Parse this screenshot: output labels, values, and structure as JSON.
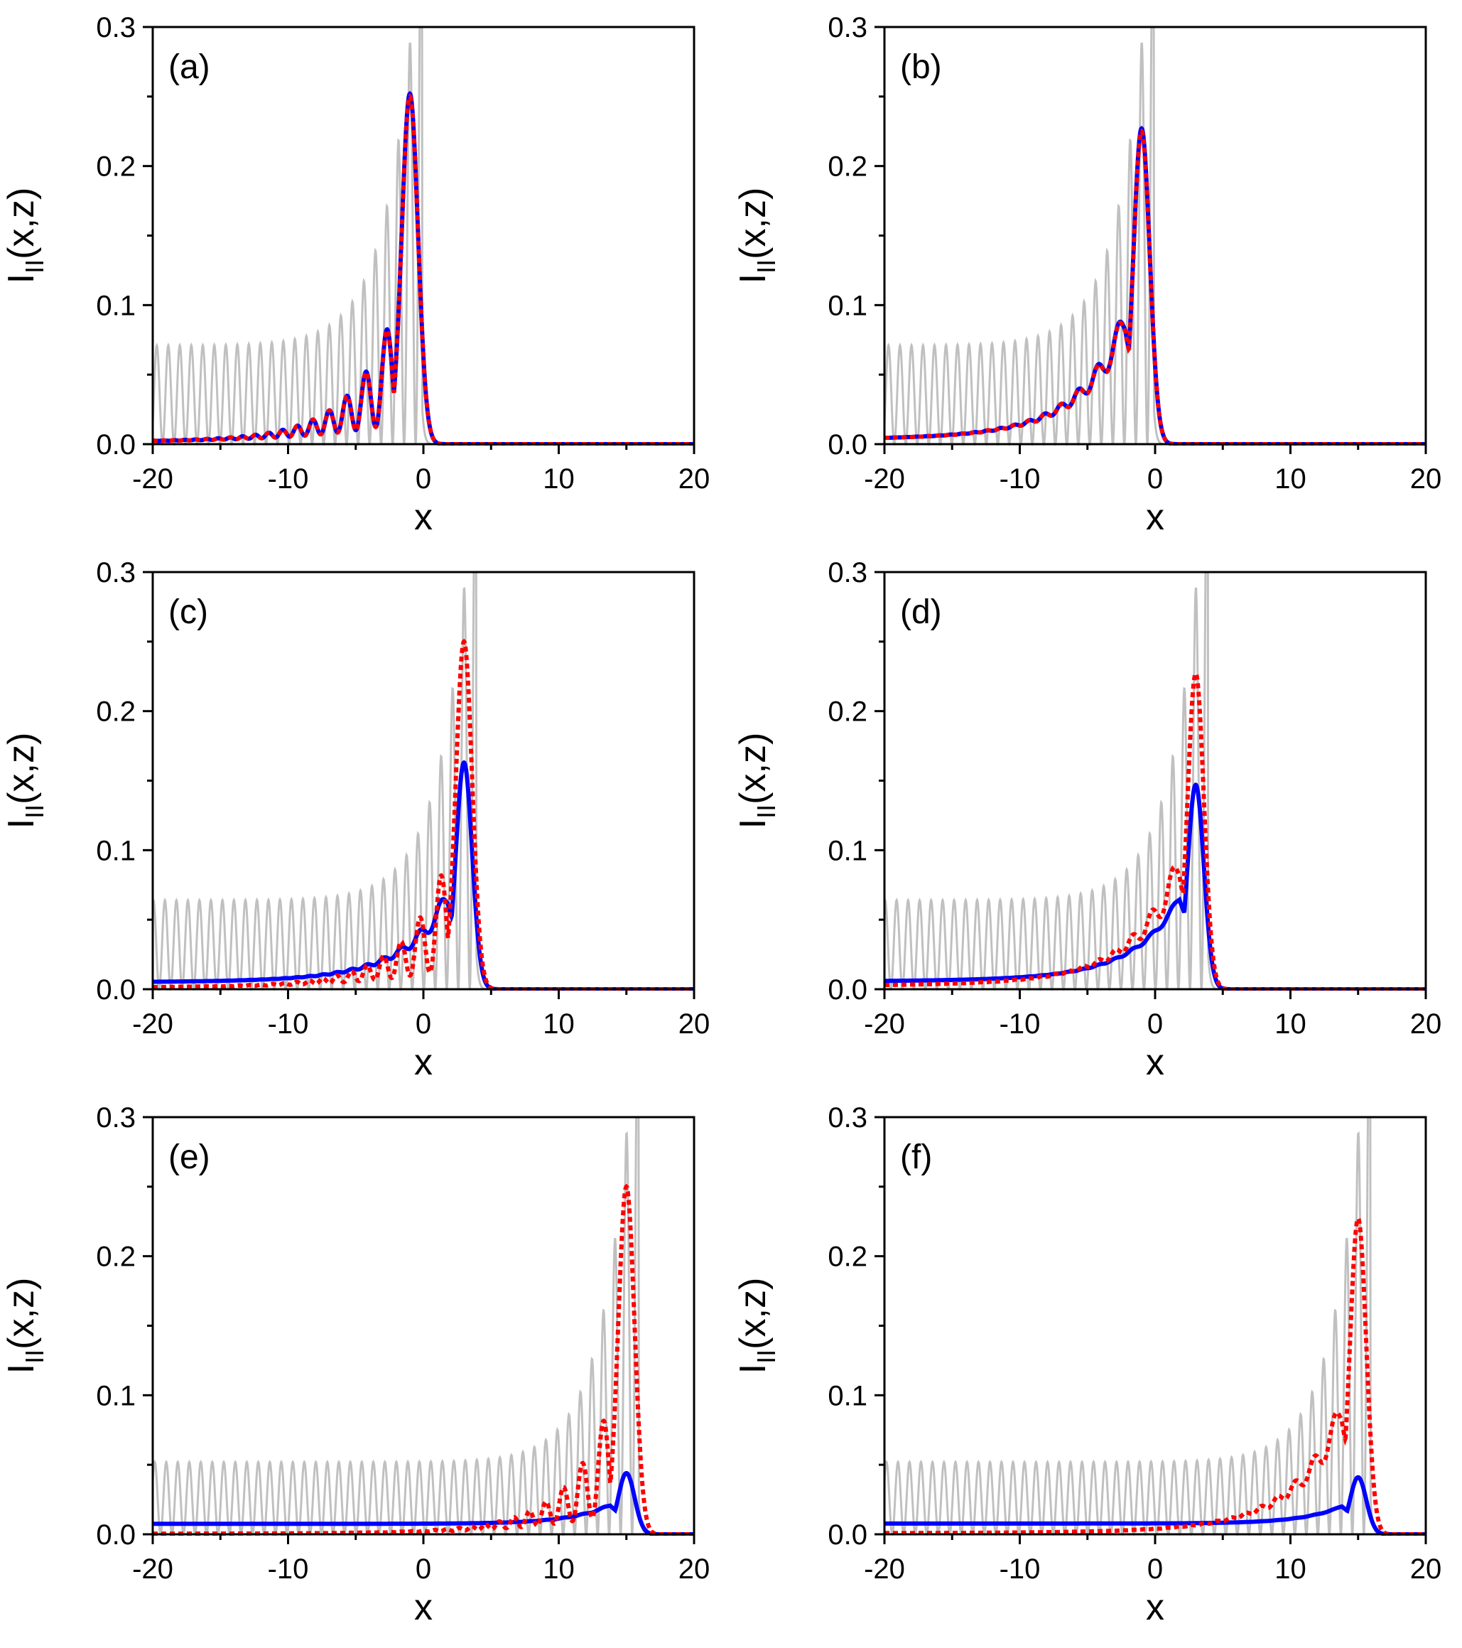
{
  "figure": {
    "panels_layout": "3 rows x 2 columns",
    "colors": {
      "reference": "#c0c0c0",
      "solid": "#0000ff",
      "dotted": "#ff0000",
      "axis": "#000000"
    }
  },
  "chart_data": [
    {
      "type": "line",
      "label": "(a)",
      "xlabel": "x",
      "ylabel_main": "I",
      "ylabel_sub": "II",
      "ylabel_suffix": "(x,z)",
      "xlim": [
        -20,
        20
      ],
      "ylim": [
        0,
        0.3
      ],
      "xticks": [
        "-20",
        "-10",
        "0",
        "10",
        "20"
      ],
      "yticks": [
        "0.0",
        "0.1",
        "0.2",
        "0.3"
      ],
      "series": [
        {
          "name": "reference",
          "style": "gray-solid",
          "peak_x": -1.0,
          "peak_y": 0.288,
          "tail_y": 0.071
        },
        {
          "name": "solid",
          "style": "blue-solid",
          "peak_x": -1.0,
          "peak_y": 0.252,
          "tail_y": 0.004,
          "osc": 1.0
        },
        {
          "name": "dotted",
          "style": "red-dotted",
          "peak_x": -1.0,
          "peak_y": 0.25,
          "tail_y": 0.004,
          "osc": 1.0
        }
      ]
    },
    {
      "type": "line",
      "label": "(b)",
      "xlabel": "x",
      "ylabel_main": "I",
      "ylabel_sub": "II",
      "ylabel_suffix": "(x,z)",
      "xlim": [
        -20,
        20
      ],
      "ylim": [
        0,
        0.3
      ],
      "xticks": [
        "-20",
        "-10",
        "0",
        "10",
        "20"
      ],
      "yticks": [
        "0.0",
        "0.1",
        "0.2",
        "0.3"
      ],
      "series": [
        {
          "name": "reference",
          "style": "gray-solid",
          "peak_x": -1.0,
          "peak_y": 0.288,
          "tail_y": 0.071
        },
        {
          "name": "solid",
          "style": "blue-solid",
          "peak_x": -1.0,
          "peak_y": 0.227,
          "tail_y": 0.004,
          "osc": 0.35
        },
        {
          "name": "dotted",
          "style": "red-dotted",
          "peak_x": -1.0,
          "peak_y": 0.225,
          "tail_y": 0.004,
          "osc": 0.35
        }
      ]
    },
    {
      "type": "line",
      "label": "(c)",
      "xlabel": "x",
      "ylabel_main": "I",
      "ylabel_sub": "II",
      "ylabel_suffix": "(x,z)",
      "xlim": [
        -20,
        20
      ],
      "ylim": [
        0,
        0.3
      ],
      "xticks": [
        "-20",
        "-10",
        "0",
        "10",
        "20"
      ],
      "yticks": [
        "0.0",
        "0.1",
        "0.2",
        "0.3"
      ],
      "series": [
        {
          "name": "reference",
          "style": "gray-solid",
          "peak_x": 3.0,
          "peak_y": 0.288,
          "tail_y": 0.064
        },
        {
          "name": "solid",
          "style": "blue-solid",
          "peak_x": 3.0,
          "peak_y": 0.163,
          "tail_y": 0.006,
          "osc": 0.3
        },
        {
          "name": "dotted",
          "style": "red-dotted",
          "peak_x": 3.0,
          "peak_y": 0.25,
          "tail_y": 0.003,
          "osc": 1.0
        }
      ]
    },
    {
      "type": "line",
      "label": "(d)",
      "xlabel": "x",
      "ylabel_main": "I",
      "ylabel_sub": "II",
      "ylabel_suffix": "(x,z)",
      "xlim": [
        -20,
        20
      ],
      "ylim": [
        0,
        0.3
      ],
      "xticks": [
        "-20",
        "-10",
        "0",
        "10",
        "20"
      ],
      "yticks": [
        "0.0",
        "0.1",
        "0.2",
        "0.3"
      ],
      "series": [
        {
          "name": "reference",
          "style": "gray-solid",
          "peak_x": 3.0,
          "peak_y": 0.288,
          "tail_y": 0.064
        },
        {
          "name": "solid",
          "style": "blue-solid",
          "peak_x": 3.0,
          "peak_y": 0.147,
          "tail_y": 0.006,
          "osc": 0.12
        },
        {
          "name": "dotted",
          "style": "red-dotted",
          "peak_x": 3.0,
          "peak_y": 0.227,
          "tail_y": 0.003,
          "osc": 0.35
        }
      ]
    },
    {
      "type": "line",
      "label": "(e)",
      "xlabel": "x",
      "ylabel_main": "I",
      "ylabel_sub": "II",
      "ylabel_suffix": "(x,z)",
      "xlim": [
        -20,
        20
      ],
      "ylim": [
        0,
        0.3
      ],
      "xticks": [
        "-20",
        "-10",
        "0",
        "10",
        "20"
      ],
      "yticks": [
        "0.0",
        "0.1",
        "0.2",
        "0.3"
      ],
      "series": [
        {
          "name": "reference",
          "style": "gray-solid",
          "peak_x": 15.0,
          "peak_y": 0.288,
          "tail_y": 0.052
        },
        {
          "name": "solid",
          "style": "blue-solid",
          "peak_x": 15.0,
          "peak_y": 0.044,
          "tail_y": 0.008,
          "osc": 0.1
        },
        {
          "name": "dotted",
          "style": "red-dotted",
          "peak_x": 15.0,
          "peak_y": 0.25,
          "tail_y": 0.001,
          "osc": 1.0
        }
      ]
    },
    {
      "type": "line",
      "label": "(f)",
      "xlabel": "x",
      "ylabel_main": "I",
      "ylabel_sub": "II",
      "ylabel_suffix": "(x,z)",
      "xlim": [
        -20,
        20
      ],
      "ylim": [
        0,
        0.3
      ],
      "xticks": [
        "-20",
        "-10",
        "0",
        "10",
        "20"
      ],
      "yticks": [
        "0.0",
        "0.1",
        "0.2",
        "0.3"
      ],
      "series": [
        {
          "name": "reference",
          "style": "gray-solid",
          "peak_x": 15.0,
          "peak_y": 0.288,
          "tail_y": 0.052
        },
        {
          "name": "solid",
          "style": "blue-solid",
          "peak_x": 15.0,
          "peak_y": 0.041,
          "tail_y": 0.008,
          "osc": 0.05
        },
        {
          "name": "dotted",
          "style": "red-dotted",
          "peak_x": 15.0,
          "peak_y": 0.227,
          "tail_y": 0.001,
          "osc": 0.35
        }
      ]
    }
  ]
}
